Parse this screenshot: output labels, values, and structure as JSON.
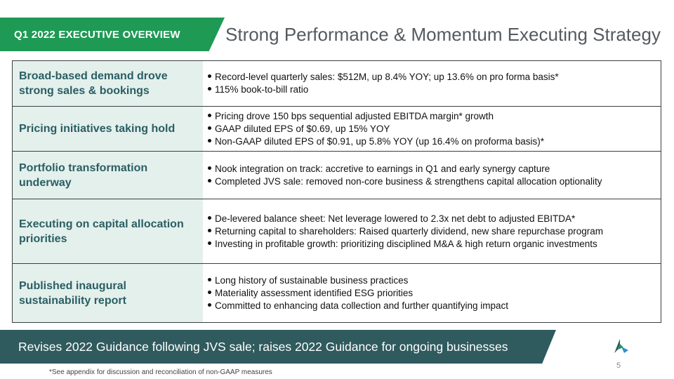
{
  "header": {
    "tag": "Q1 2022 EXECUTIVE OVERVIEW",
    "title": "Strong Performance & Momentum Executing Strategy"
  },
  "rows": [
    {
      "label": "Broad-based demand drove strong sales & bookings",
      "bullets": [
        "Record-level quarterly sales: $512M, up 8.4% YOY; up 13.6% on pro forma basis*",
        "115% book-to-bill ratio"
      ]
    },
    {
      "label": "Pricing initiatives taking hold",
      "bullets": [
        "Pricing drove 150 bps sequential adjusted EBITDA margin* growth",
        "GAAP diluted EPS of $0.69, up 15% YOY",
        "Non-GAAP diluted EPS of $0.91, up 5.8% YOY (up 16.4% on proforma basis)*"
      ]
    },
    {
      "label": "Portfolio transformation underway",
      "bullets": [
        "Nook integration on track: accretive to earnings in Q1 and early synergy capture",
        "Completed JVS sale: removed non-core business & strengthens capital allocation optionality"
      ]
    },
    {
      "label": "Executing on capital allocation priorities",
      "bullets": [
        "De-levered balance sheet: Net leverage lowered to 2.3x net debt to adjusted EBITDA*",
        "Returning capital to shareholders: Raised quarterly dividend, new share repurchase program",
        "Investing in profitable growth: prioritizing disciplined M&A & high return organic investments"
      ]
    },
    {
      "label": "Published inaugural sustainability report",
      "bullets": [
        "Long history of sustainable business practices",
        "Materiality assessment identified ESG priorities",
        "Committed to enhancing data collection and further quantifying impact"
      ]
    }
  ],
  "banner": "Revises 2022 Guidance following JVS sale; raises 2022 Guidance for ongoing businesses",
  "footnote": "*See appendix for discussion and reconciliation of non-GAAP measures",
  "page_number": "5",
  "logo_icon": "company-logo-icon",
  "colors": {
    "accent_green": "#1f9a55",
    "label_text": "#2b5e63",
    "label_bg": "#e3f0ec",
    "banner_bg": "#2f5a5e"
  }
}
